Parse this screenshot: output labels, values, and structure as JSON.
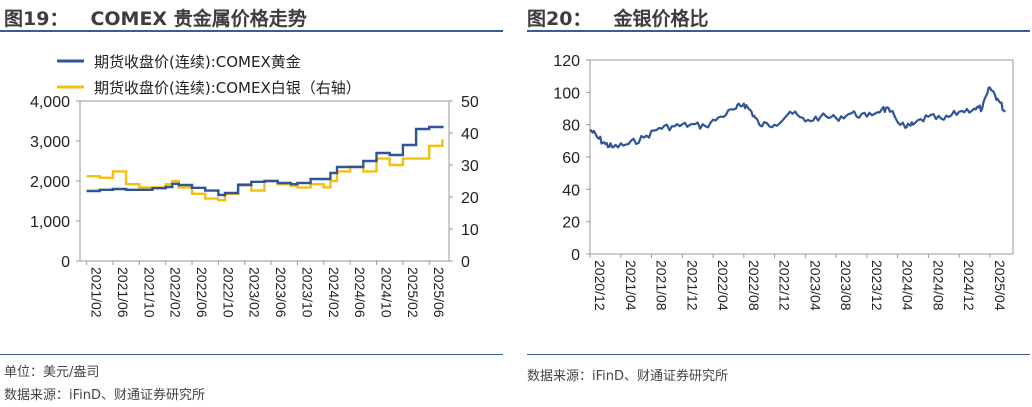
{
  "figures": [
    {
      "number": "图19：",
      "title": "COMEX 贵金属价格走势"
    },
    {
      "number": "图20：",
      "title": "金银价格比"
    }
  ],
  "notes": {
    "fig1_unit": "单位：美元/盎司",
    "fig1_source": "数据来源：iFinD、财通证券研究所",
    "fig2_source": "数据来源：iFinD、财通证券研究所"
  },
  "colors": {
    "gold": "#2f5597",
    "silver": "#f5bf0f",
    "ratio": "#2f5597"
  },
  "chart_data": [
    {
      "type": "line",
      "legend_position": "top-left",
      "grid": false,
      "left_axis": {
        "range": [
          0,
          4000
        ],
        "ticks": [
          "0",
          "1,000",
          "2,000",
          "3,000",
          "4,000"
        ]
      },
      "right_axis": {
        "range": [
          0,
          50
        ],
        "ticks": [
          "0",
          "10",
          "20",
          "30",
          "40",
          "50"
        ]
      },
      "x_ticks": [
        "2021/02",
        "2021/06",
        "2021/10",
        "2022/02",
        "2022/06",
        "2022/10",
        "2023/02",
        "2023/06",
        "2023/10",
        "2024/02",
        "2024/06",
        "2024/10",
        "2025/02",
        "2025/06"
      ],
      "series": [
        {
          "name": "期货收盘价(连续):COMEX黄金",
          "axis": "left",
          "x": [
            "2021/02",
            "2021/04",
            "2021/06",
            "2021/08",
            "2021/10",
            "2021/12",
            "2022/02",
            "2022/03",
            "2022/04",
            "2022/06",
            "2022/08",
            "2022/10",
            "2022/11",
            "2023/01",
            "2023/03",
            "2023/05",
            "2023/07",
            "2023/09",
            "2023/10",
            "2023/12",
            "2024/02",
            "2024/03",
            "2024/04",
            "2024/06",
            "2024/08",
            "2024/10",
            "2024/12",
            "2025/02",
            "2025/04",
            "2025/06",
            "2025/08"
          ],
          "values": [
            1750,
            1780,
            1800,
            1780,
            1780,
            1820,
            1850,
            1930,
            1900,
            1830,
            1760,
            1650,
            1700,
            1900,
            1980,
            2000,
            1950,
            1920,
            1950,
            2050,
            2050,
            2200,
            2350,
            2350,
            2500,
            2700,
            2650,
            2900,
            3300,
            3350,
            3380
          ]
        },
        {
          "name": "期货收盘价(连续):COMEX白银（右轴）",
          "axis": "right",
          "x": [
            "2021/02",
            "2021/04",
            "2021/06",
            "2021/08",
            "2021/10",
            "2021/12",
            "2022/02",
            "2022/03",
            "2022/04",
            "2022/06",
            "2022/08",
            "2022/10",
            "2022/11",
            "2023/01",
            "2023/03",
            "2023/05",
            "2023/07",
            "2023/09",
            "2023/10",
            "2023/12",
            "2024/02",
            "2024/03",
            "2024/04",
            "2024/06",
            "2024/08",
            "2024/10",
            "2024/12",
            "2025/02",
            "2025/04",
            "2025/06",
            "2025/08"
          ],
          "values": [
            26.5,
            26,
            28,
            24,
            23,
            23,
            24,
            25,
            23,
            21,
            19.5,
            19,
            21,
            24,
            22,
            25,
            24,
            23.5,
            23,
            24,
            23,
            25,
            28,
            29.5,
            28,
            32,
            30,
            32,
            32,
            36,
            38
          ]
        }
      ]
    },
    {
      "type": "line",
      "grid": false,
      "y_axis": {
        "range": [
          0,
          120
        ],
        "ticks": [
          "0",
          "20",
          "40",
          "60",
          "80",
          "100",
          "120"
        ]
      },
      "x_ticks": [
        "2020/12",
        "2021/04",
        "2021/08",
        "2021/12",
        "2022/04",
        "2022/08",
        "2022/12",
        "2023/04",
        "2023/08",
        "2023/12",
        "2024/04",
        "2024/08",
        "2024/12",
        "2025/04"
      ],
      "series": [
        {
          "axis": "left",
          "x": [
            "2020/12",
            "2021/01",
            "2021/02",
            "2021/03",
            "2021/05",
            "2021/07",
            "2021/09",
            "2021/11",
            "2022/01",
            "2022/03",
            "2022/05",
            "2022/07",
            "2022/08",
            "2022/09",
            "2022/10",
            "2022/12",
            "2023/02",
            "2023/04",
            "2023/06",
            "2023/08",
            "2023/10",
            "2023/12",
            "2024/02",
            "2024/03",
            "2024/05",
            "2024/06",
            "2024/08",
            "2024/10",
            "2024/12",
            "2025/02",
            "2025/03",
            "2025/04",
            "2025/05",
            "2025/06"
          ],
          "values": [
            77,
            72,
            68,
            66,
            68,
            72,
            78,
            79,
            80,
            79,
            85,
            90,
            93,
            88,
            80,
            80,
            88,
            82,
            85,
            84,
            87,
            85,
            90,
            88,
            78,
            80,
            85,
            83,
            88,
            90,
            90,
            103,
            96,
            88
          ]
        }
      ]
    }
  ]
}
